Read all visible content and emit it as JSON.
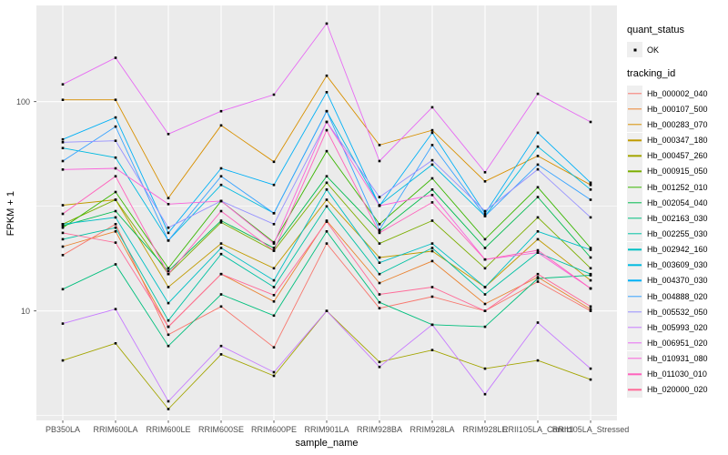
{
  "figure": {
    "background": "#FFFFFF",
    "panel_bg": "#EBEBEB",
    "grid_color": "#FFFFFF",
    "tick_color": "#333333",
    "point_color": "#000000",
    "text_color": "#4D4D4D"
  },
  "axes": {
    "x": {
      "title": "sample_name"
    },
    "y": {
      "title": "FPKM + 1",
      "scale": "log10",
      "ticks": [
        {
          "label": "100",
          "value": 100
        },
        {
          "label": "10",
          "value": 10
        }
      ]
    }
  },
  "legend": {
    "position": "right",
    "quant_status": {
      "title": "quant_status",
      "items": [
        {
          "label": "OK",
          "symbol": "black-point"
        }
      ]
    },
    "tracking_id": {
      "title": "tracking_id"
    }
  },
  "chart_data": {
    "type": "line",
    "title": "",
    "xlabel": "sample_name",
    "ylabel": "FPKM + 1",
    "y_scale": "log10",
    "ylim": [
      2.9,
      280
    ],
    "grid": true,
    "legend_position": "right",
    "point_marker": "small black square",
    "y_minor_gridlines": [
      31.62,
      3.162
    ],
    "categories": [
      "PB350LA",
      "RRIM600LA",
      "RRIM600LE",
      "RRIM600SE",
      "RRIM600PE",
      "RRIM901LA",
      "RRIM928BA",
      "RRIM928LA",
      "RRIM928LE",
      "RRII105LA_Control",
      "RRII105LA_Stressed"
    ],
    "series": [
      {
        "name": "Hb_000002_040",
        "color": "#F8766D",
        "values": [
          18.5,
          26,
          7.7,
          10.5,
          6.7,
          21,
          10.3,
          11.7,
          10,
          13.8,
          10
        ]
      },
      {
        "name": "Hb_000107_500",
        "color": "#EA8331",
        "values": [
          20.3,
          24,
          8.4,
          15,
          11.1,
          27,
          13.6,
          17.3,
          10.8,
          14.5,
          10.2
        ]
      },
      {
        "name": "Hb_000283_070",
        "color": "#D89000",
        "values": [
          102,
          102,
          34.6,
          77,
          51.6,
          133,
          62,
          73,
          41.6,
          55,
          40
        ]
      },
      {
        "name": "Hb_000347_180",
        "color": "#C09B00",
        "values": [
          32,
          34,
          13,
          21,
          16,
          34,
          18,
          19.3,
          13,
          22,
          14
        ]
      },
      {
        "name": "Hb_000457_260",
        "color": "#A3A500",
        "values": [
          5.8,
          7,
          3.4,
          6.2,
          4.9,
          10,
          5.7,
          6.5,
          5.3,
          5.8,
          4.7
        ]
      },
      {
        "name": "Hb_000915_050",
        "color": "#7CAE00",
        "values": [
          26,
          34,
          15,
          26.5,
          19.4,
          41,
          21,
          27,
          16,
          28,
          16
        ]
      },
      {
        "name": "Hb_001252_010",
        "color": "#39B600",
        "values": [
          25,
          37,
          16,
          33.5,
          21.3,
          58,
          26,
          43,
          22,
          39,
          20
        ]
      },
      {
        "name": "Hb_002054_040",
        "color": "#00BB4E",
        "values": [
          25.5,
          30,
          15.5,
          27,
          20,
          44,
          24,
          38,
          20,
          35,
          18
        ]
      },
      {
        "name": "Hb_002163_030",
        "color": "#00BF7D",
        "values": [
          12.7,
          16.7,
          6.8,
          12,
          9.5,
          24,
          11,
          8.6,
          8.4,
          14.3,
          14.8
        ]
      },
      {
        "name": "Hb_002255_030",
        "color": "#00C1A3",
        "values": [
          22,
          25,
          9,
          18.7,
          13,
          31.6,
          15,
          20,
          12,
          19,
          15
        ]
      },
      {
        "name": "Hb_002942_160",
        "color": "#00BFC4",
        "values": [
          26,
          28,
          10.9,
          20,
          14,
          38,
          17,
          21,
          13,
          24,
          19.6
        ]
      },
      {
        "name": "Hb_003609_030",
        "color": "#00BAE0",
        "values": [
          60,
          54,
          21.7,
          40,
          29.3,
          90,
          32,
          50,
          28.4,
          61,
          38
        ]
      },
      {
        "name": "Hb_004370_030",
        "color": "#00B0F6",
        "values": [
          66,
          84,
          23.6,
          48,
          40,
          111,
          31.8,
          71,
          29.2,
          71,
          41
        ]
      },
      {
        "name": "Hb_004888_020",
        "color": "#35A2FF",
        "values": [
          52,
          76,
          21.7,
          44,
          29.3,
          90,
          24.4,
          62,
          28.4,
          50,
          34
        ]
      },
      {
        "name": "Hb_005532_050",
        "color": "#9590FF",
        "values": [
          64,
          65,
          25,
          33.5,
          26,
          80,
          35,
          52.5,
          30,
          47.5,
          28
        ]
      },
      {
        "name": "Hb_005993_020",
        "color": "#C77CFF",
        "values": [
          8.7,
          10.2,
          3.7,
          6.8,
          5.1,
          10,
          5.4,
          8.6,
          4,
          8.8,
          5.3
        ]
      },
      {
        "name": "Hb_006951_020",
        "color": "#E76BF3",
        "values": [
          121,
          162,
          70,
          90,
          108,
          236,
          52,
          94,
          46,
          109,
          80
        ]
      },
      {
        "name": "Hb_010931_080",
        "color": "#FA62DB",
        "values": [
          47.4,
          48,
          32.4,
          33.5,
          21,
          80,
          31.8,
          35.8,
          17.6,
          19,
          12.8
        ]
      },
      {
        "name": "Hb_011030_010",
        "color": "#FF62BC",
        "values": [
          29.1,
          44,
          15,
          30,
          19.4,
          73,
          23.6,
          33,
          17.6,
          19.5,
          12.8
        ]
      },
      {
        "name": "Hb_020000_020",
        "color": "#FF6A98",
        "values": [
          23.6,
          21.2,
          8.4,
          15,
          11.9,
          26.7,
          12,
          13,
          10,
          15,
          10.5
        ]
      }
    ]
  }
}
